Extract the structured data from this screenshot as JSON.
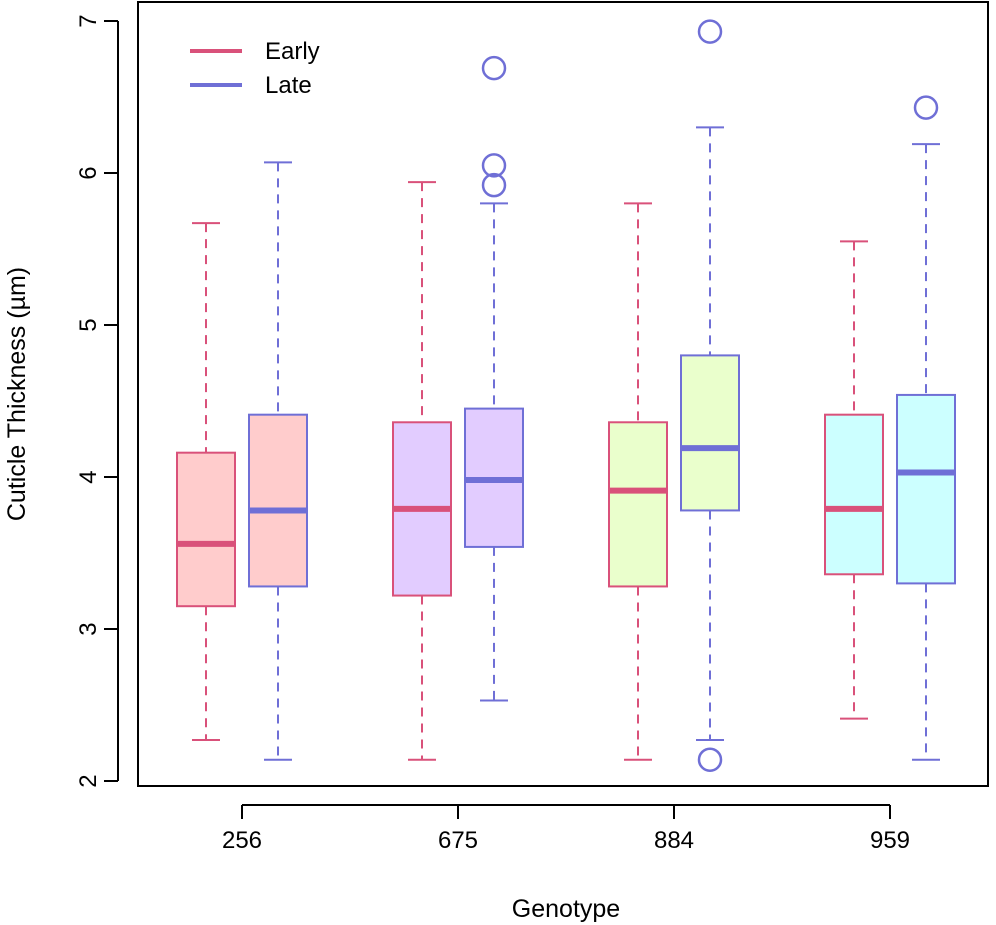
{
  "chart_data": {
    "type": "box",
    "xlabel": "Genotype",
    "ylabel": "Cuticle Thickness (µm)",
    "ylim": [
      2,
      7
    ],
    "yticks": [
      2,
      3,
      4,
      5,
      6,
      7
    ],
    "categories": [
      "256",
      "675",
      "884",
      "959"
    ],
    "legend": {
      "position": "top-left",
      "entries": [
        {
          "label": "Early",
          "color": "#d9517a"
        },
        {
          "label": "Late",
          "color": "#6f6fd6"
        }
      ]
    },
    "fill_colors": {
      "256": "#ffcccc",
      "675": "#e2ccff",
      "884": "#eaffcc",
      "959": "#ccffff"
    },
    "series": [
      {
        "name": "Early",
        "color": "#d9517a",
        "boxes": [
          {
            "category": "256",
            "whisker_low": 2.27,
            "q1": 3.15,
            "median": 3.56,
            "q3": 4.16,
            "whisker_high": 5.67,
            "outliers": []
          },
          {
            "category": "675",
            "whisker_low": 2.14,
            "q1": 3.22,
            "median": 3.79,
            "q3": 4.36,
            "whisker_high": 5.94,
            "outliers": []
          },
          {
            "category": "884",
            "whisker_low": 2.14,
            "q1": 3.28,
            "median": 3.91,
            "q3": 4.36,
            "whisker_high": 5.8,
            "outliers": []
          },
          {
            "category": "959",
            "whisker_low": 2.41,
            "q1": 3.36,
            "median": 3.79,
            "q3": 4.41,
            "whisker_high": 5.55,
            "outliers": []
          }
        ]
      },
      {
        "name": "Late",
        "color": "#6f6fd6",
        "boxes": [
          {
            "category": "256",
            "whisker_low": 2.14,
            "q1": 3.28,
            "median": 3.78,
            "q3": 4.41,
            "whisker_high": 6.07,
            "outliers": []
          },
          {
            "category": "675",
            "whisker_low": 2.53,
            "q1": 3.54,
            "median": 3.98,
            "q3": 4.45,
            "whisker_high": 5.8,
            "outliers": [
              5.92,
              6.05,
              6.69
            ]
          },
          {
            "category": "884",
            "whisker_low": 2.27,
            "q1": 3.78,
            "median": 4.19,
            "q3": 4.8,
            "whisker_high": 6.3,
            "outliers": [
              2.14,
              6.93
            ]
          },
          {
            "category": "959",
            "whisker_low": 2.14,
            "q1": 3.3,
            "median": 4.03,
            "q3": 4.54,
            "whisker_high": 6.19,
            "outliers": [
              6.43
            ]
          }
        ]
      }
    ]
  }
}
